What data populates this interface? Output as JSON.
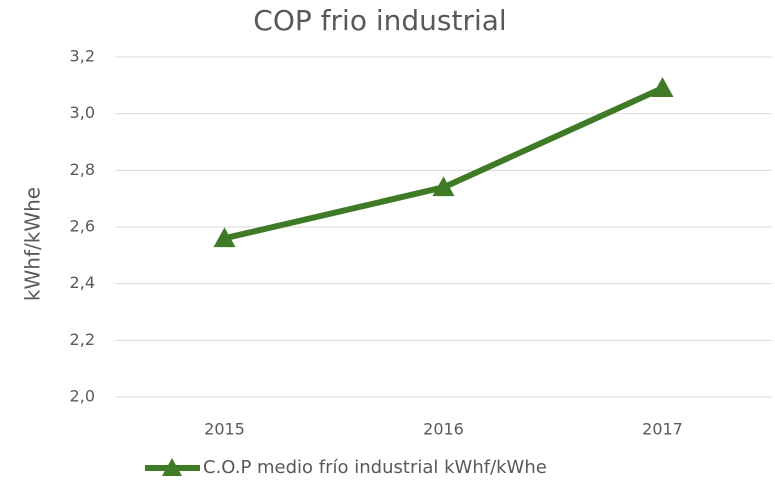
{
  "chart_data": {
    "type": "line",
    "title": "COP frio industrial",
    "y_label": "kWhf/kWhe",
    "categories": [
      "2015",
      "2016",
      "2017"
    ],
    "series": [
      {
        "name": "C.O.P medio frío industrial kWhf/kWhe",
        "color": "#3f7a26",
        "values": [
          2.56,
          2.74,
          3.09
        ]
      }
    ],
    "ylim": [
      2.0,
      3.2
    ],
    "yticks": [
      {
        "value": 2.0,
        "label": "2,0"
      },
      {
        "value": 2.2,
        "label": "2,2"
      },
      {
        "value": 2.4,
        "label": "2,4"
      },
      {
        "value": 2.6,
        "label": "2,6"
      },
      {
        "value": 2.8,
        "label": "2,8"
      },
      {
        "value": 3.0,
        "label": "3,0"
      },
      {
        "value": 3.2,
        "label": "3,2"
      }
    ],
    "grid": true,
    "legend": "bottom"
  }
}
